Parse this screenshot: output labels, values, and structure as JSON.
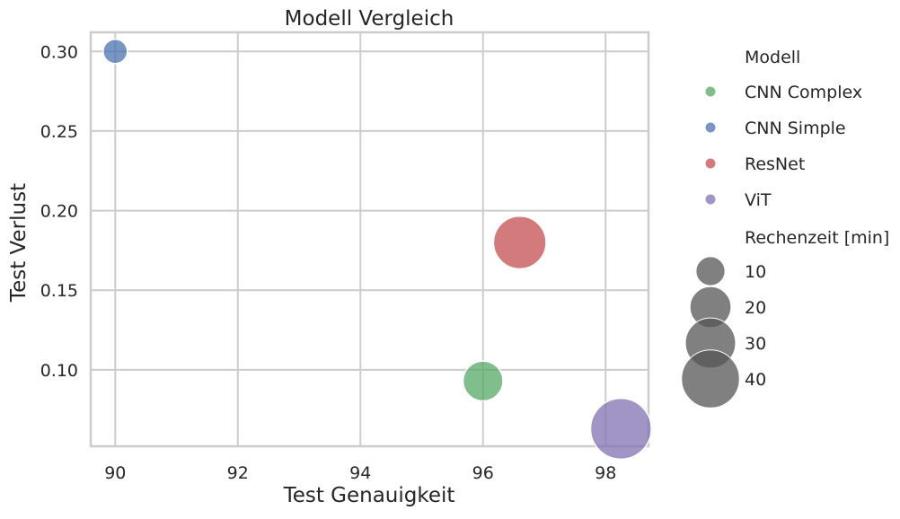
{
  "chart_data": {
    "type": "scatter",
    "title": "Modell Vergleich",
    "xlabel": "Test Genauigkeit",
    "ylabel": "Test Verlust",
    "xlim": [
      89.6,
      98.7
    ],
    "ylim": [
      0.052,
      0.312
    ],
    "xticks": [
      90,
      92,
      94,
      96,
      98
    ],
    "yticks": [
      0.1,
      0.15,
      0.2,
      0.25,
      0.3
    ],
    "xtick_labels": [
      "90",
      "92",
      "94",
      "96",
      "98"
    ],
    "ytick_labels": [
      "0.10",
      "0.15",
      "0.20",
      "0.25",
      "0.30"
    ],
    "grid": true,
    "legend_position": "outside-right",
    "series": [
      {
        "name": "CNN Complex",
        "color": "#55a868",
        "x": 96.0,
        "y": 0.093,
        "size": 19
      },
      {
        "name": "CNN Simple",
        "color": "#4c72b0",
        "x": 90.0,
        "y": 0.3,
        "size": 7
      },
      {
        "name": "ResNet",
        "color": "#c44e52",
        "x": 96.6,
        "y": 0.18,
        "size": 33
      },
      {
        "name": "ViT",
        "color": "#8172b3",
        "x": 98.25,
        "y": 0.063,
        "size": 44
      }
    ],
    "legend": {
      "hue_title": "Modell",
      "size_title": "Rechenzeit [min]",
      "size_entries": [
        {
          "label": "10",
          "value": 10
        },
        {
          "label": "20",
          "value": 20
        },
        {
          "label": "30",
          "value": 30
        },
        {
          "label": "40",
          "value": 40
        }
      ]
    }
  }
}
